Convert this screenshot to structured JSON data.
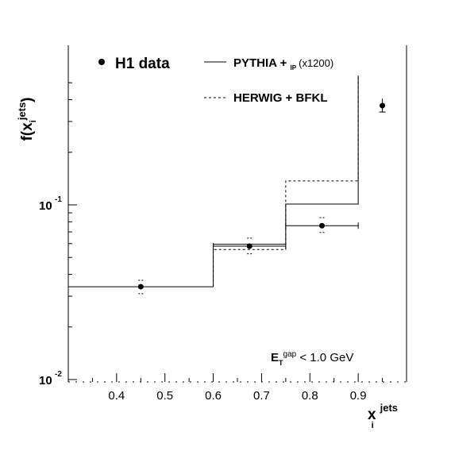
{
  "chart_data": {
    "type": "histogram",
    "x_axis": {
      "label_main": "x",
      "label_sub": "i",
      "label_sup": "jets",
      "range": [
        0.3,
        1.0
      ],
      "ticks": [
        {
          "v": 0.4,
          "label": "0.4"
        },
        {
          "v": 0.5,
          "label": "0.5"
        },
        {
          "v": 0.6,
          "label": "0.6"
        },
        {
          "v": 0.7,
          "label": "0.7"
        },
        {
          "v": 0.8,
          "label": "0.8"
        },
        {
          "v": 0.9,
          "label": "0.9"
        }
      ]
    },
    "y_axis": {
      "label_main": "f(x",
      "label_sub": "i",
      "label_sup": "jets",
      "label_close": ")",
      "scale": "log",
      "range": [
        0.01,
        0.55
      ],
      "ticks": [
        {
          "v": 0.1,
          "base": "10",
          "exp": "-1"
        },
        {
          "v": 0.01,
          "base": "10",
          "exp": "-2"
        }
      ]
    },
    "legend": {
      "placement": "top",
      "data_label": "H1 data",
      "pythia_label": "PYTHIA + ",
      "pythia_sub": "IP",
      "pythia_scale": "(x1200)",
      "herwig_label": "HERWIG + BFKL"
    },
    "annotation": {
      "main": "E",
      "sub": "T",
      "sup": "gap",
      "rest": " < 1.0 GeV"
    },
    "series": [
      {
        "name": "H1 data",
        "points": [
          {
            "x": 0.45,
            "x_lo": 0.3,
            "x_hi": 0.6,
            "y": 0.034,
            "y_lo": 0.031,
            "y_hi": 0.037
          },
          {
            "x": 0.675,
            "x_lo": 0.6,
            "x_hi": 0.75,
            "y": 0.058,
            "y_lo": 0.0525,
            "y_hi": 0.0645
          },
          {
            "x": 0.825,
            "x_lo": 0.75,
            "x_hi": 0.9,
            "y": 0.076,
            "y_lo": 0.0695,
            "y_hi": 0.0845
          },
          {
            "x": 0.95,
            "x_lo": 0.95,
            "x_hi": 0.95,
            "y": 0.37,
            "y_lo": 0.34,
            "y_hi": 0.405
          }
        ]
      },
      {
        "name": "PYTHIA + IP (x1200)",
        "bins": [
          {
            "x0": 0.6,
            "x1": 0.75,
            "y": 0.0595
          },
          {
            "x0": 0.75,
            "x1": 0.9,
            "y": 0.101
          }
        ],
        "last_edge_top": 0.55
      },
      {
        "name": "HERWIG + BFKL",
        "bins": [
          {
            "x0": 0.6,
            "x1": 0.75,
            "y": 0.0555
          },
          {
            "x0": 0.75,
            "x1": 0.9,
            "y": 0.137
          }
        ],
        "last_edge_top": 0.55
      }
    ]
  }
}
